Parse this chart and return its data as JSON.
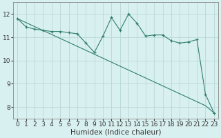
{
  "title": "",
  "xlabel": "Humidex (Indice chaleur)",
  "ylabel": "",
  "x": [
    0,
    1,
    2,
    3,
    4,
    5,
    6,
    7,
    8,
    9,
    10,
    11,
    12,
    13,
    14,
    15,
    16,
    17,
    18,
    19,
    20,
    21,
    22,
    23
  ],
  "y_jagged": [
    11.8,
    11.45,
    11.35,
    11.3,
    11.25,
    11.25,
    11.2,
    11.15,
    10.75,
    10.35,
    11.05,
    11.85,
    11.3,
    12.0,
    11.6,
    11.05,
    11.1,
    11.1,
    10.85,
    10.75,
    10.8,
    10.9,
    8.55,
    7.75
  ],
  "y_smooth": [
    11.8,
    11.63,
    11.46,
    11.29,
    11.12,
    10.95,
    10.78,
    10.61,
    10.44,
    10.27,
    10.1,
    9.93,
    9.76,
    9.59,
    9.42,
    9.25,
    9.08,
    8.91,
    8.74,
    8.57,
    8.4,
    8.23,
    8.06,
    7.75
  ],
  "color": "#2e7d6e",
  "bg_color": "#d9f0f0",
  "grid_color": "#b8d8d8",
  "ylim": [
    7.5,
    12.5
  ],
  "xlim": [
    -0.5,
    23.5
  ],
  "yticks": [
    8,
    9,
    10,
    11,
    12
  ],
  "xticks": [
    0,
    1,
    2,
    3,
    4,
    5,
    6,
    7,
    8,
    9,
    10,
    11,
    12,
    13,
    14,
    15,
    16,
    17,
    18,
    19,
    20,
    21,
    22,
    23
  ],
  "tick_fontsize": 6.5,
  "xlabel_fontsize": 7.5,
  "figwidth": 3.2,
  "figheight": 2.0,
  "dpi": 100
}
